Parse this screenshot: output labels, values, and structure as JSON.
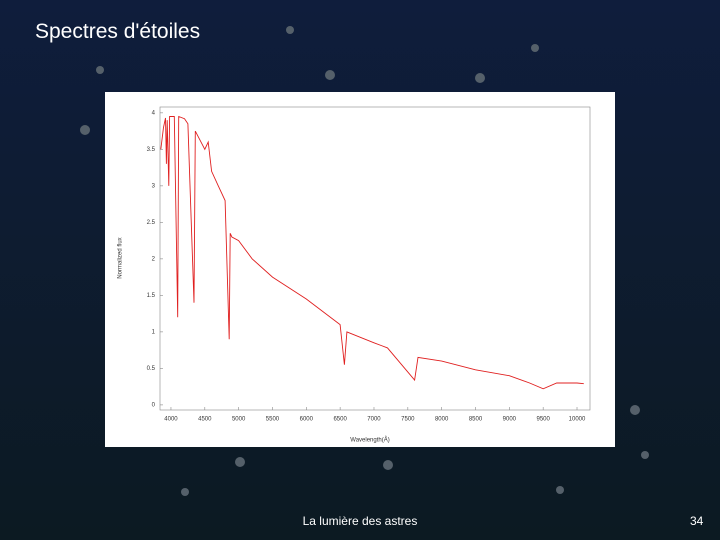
{
  "slide": {
    "title": "Spectres d'étoiles",
    "footer": "La lumière des astres",
    "page_number": "34"
  },
  "chart_data": {
    "type": "line",
    "x_label": "Wavelength(Å)",
    "y_label": "Normalized flux",
    "x": [
      3850,
      3890,
      3920,
      3933,
      3945,
      3968,
      3980,
      4050,
      4100,
      4115,
      4200,
      4250,
      4340,
      4360,
      4500,
      4550,
      4600,
      4700,
      4800,
      4861,
      4875,
      4900,
      5000,
      5200,
      5500,
      6000,
      6500,
      6563,
      6600,
      7000,
      7200,
      7600,
      7650,
      8000,
      8500,
      9000,
      9300,
      9500,
      9700,
      10000,
      10100
    ],
    "values": [
      3.5,
      3.8,
      3.93,
      3.3,
      3.9,
      3.0,
      3.95,
      3.95,
      1.2,
      3.95,
      3.92,
      3.85,
      1.4,
      3.75,
      3.5,
      3.6,
      3.2,
      3.0,
      2.8,
      0.9,
      2.35,
      2.3,
      2.25,
      2.0,
      1.75,
      1.45,
      1.1,
      0.55,
      1.0,
      0.85,
      0.78,
      0.34,
      0.65,
      0.6,
      0.48,
      0.4,
      0.3,
      0.22,
      0.3,
      0.3,
      0.29
    ],
    "color": "#e02020",
    "xlim": [
      3838,
      10192
    ],
    "ylim": [
      -0.07,
      4.08
    ],
    "xticks": [
      4000,
      4500,
      5000,
      5500,
      6000,
      6500,
      7000,
      7500,
      8000,
      8500,
      9000,
      9500,
      10000
    ],
    "yticks": [
      0,
      0.5,
      1,
      1.5,
      2,
      2.5,
      3,
      3.5,
      4
    ]
  }
}
